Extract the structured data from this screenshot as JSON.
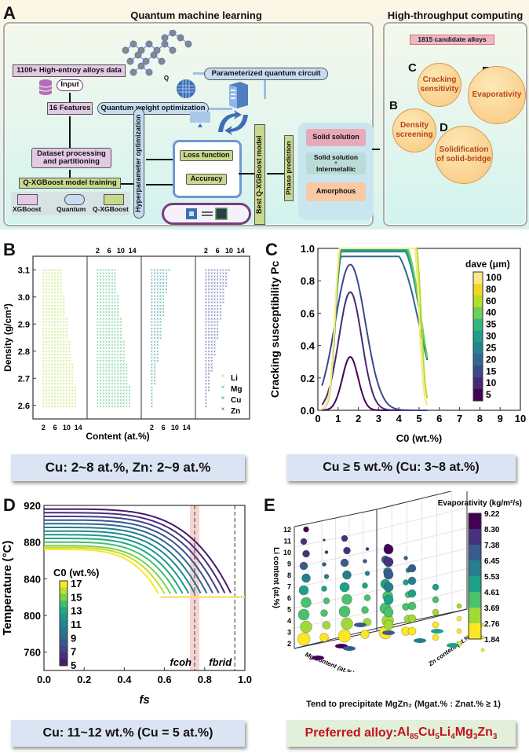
{
  "panelA": {
    "letter": "A",
    "qml_title": "Quantum machine learning",
    "htc_title": "High-throughput computing",
    "nodes": {
      "data": "1100+ High-entroy alloys data",
      "input": "Input",
      "features": "16 Features",
      "qwo": "Quantum weight optimization",
      "pqc": "Parameterized quantum circuit",
      "qubit": "Q",
      "dataset": "Dataset processing and partitioning",
      "training": "Q-XGBoost model training",
      "hyper": "Hyperparameter optimization",
      "loss": "Loss function",
      "accuracy": "Accuracy",
      "best": "Best Q-XGBoost model",
      "phase": "Phase prediction",
      "solid": "Solid solution",
      "solid_inter_1": "Solid solution",
      "solid_inter_plus": "+",
      "solid_inter_2": "Intermetallic",
      "amorphous": "Amorphous"
    },
    "legend": [
      "XGBoost",
      "Quantum",
      "Q-XGBoost"
    ],
    "htc": {
      "candidates": "1815 candidate alloys",
      "circles": [
        {
          "letter": "C",
          "label": "Cracking sensitivity"
        },
        {
          "letter": "E",
          "label": "Evaporativity"
        },
        {
          "letter": "B",
          "label": "Density screening"
        },
        {
          "letter": "D",
          "label": "Solidification of solid-bridge"
        }
      ]
    }
  },
  "summaries": {
    "B": "Cu: 2~8 at.%, Zn: 2~9 at.%",
    "C": "Cu ≥ 5 wt.% (Cu: 3~8 at.%)",
    "D": "Cu: 11~12 wt.% (Cu = 5 at.%)",
    "E_note": "Tend to precipitate MgZn₂ (Mgat.% : Znat.% ≥ 1)",
    "E_pref_prefix": "Preferred alloy: ",
    "E_pref_alloy": "Al85Cu5Li4Mg3Zn3"
  },
  "chart_data": [
    {
      "panel": "B",
      "type": "scatter",
      "ylabel": "Density (g/cm³)",
      "xlabel": "Content (at.%)",
      "ylim": [
        2.55,
        3.15
      ],
      "yticks": [
        2.6,
        2.7,
        2.8,
        2.9,
        3.0,
        3.1
      ],
      "xticks": [
        2,
        6,
        10,
        14
      ],
      "xlim": [
        0,
        16
      ],
      "series": [
        {
          "name": "Li",
          "color": "#b8e04a",
          "xmax_at_top": 8,
          "xmax_at_bottom": 14,
          "ymin": 2.59
        },
        {
          "name": "Mg",
          "color": "#3dbb74",
          "xmax_at_top": 8,
          "xmax_at_bottom": 14,
          "ymin": 2.59
        },
        {
          "name": "Cu",
          "color": "#1f8a8a",
          "xmax_at_top": 8,
          "xmax_at_bottom": 2,
          "ymin": 2.59
        },
        {
          "name": "Zn",
          "color": "#3b4a9a",
          "xmax_at_top": 10,
          "xmax_at_bottom": 2,
          "ymin": 2.59
        }
      ]
    },
    {
      "panel": "C",
      "type": "line",
      "ylabel": "Cracking susceptibility Pc",
      "xlabel": "C0 (wt.%)",
      "xlim": [
        0,
        10
      ],
      "ylim": [
        0,
        1.0
      ],
      "xticks": [
        0,
        1,
        2,
        3,
        4,
        5,
        6,
        7,
        8,
        9,
        10
      ],
      "yticks": [
        0.0,
        0.2,
        0.4,
        0.6,
        0.8,
        1.0
      ],
      "colorbar_title": "dave (μm)",
      "colorbar_ticks": [
        100,
        80,
        60,
        40,
        35,
        30,
        25,
        20,
        15,
        10,
        5
      ],
      "series": [
        {
          "name": "5",
          "peak": 0.33,
          "peak_x": 1.6,
          "end_x": 3.3
        },
        {
          "name": "10",
          "peak": 0.73,
          "peak_x": 1.6,
          "end_x": 4.0
        },
        {
          "name": "15",
          "peak": 0.9,
          "peak_x": 1.6,
          "end_x": 4.6
        },
        {
          "name": "20",
          "peak": 0.95,
          "peak_x": 1.6,
          "end_x": 5.0
        },
        {
          "name": "25",
          "peak": 0.98,
          "peak_x": 1.6,
          "end_x": 5.1
        },
        {
          "name": "30",
          "peak": 0.99,
          "peak_x": 1.6,
          "end_x": 5.1
        },
        {
          "name": "35",
          "peak": 1.0,
          "peak_x": 1.6,
          "end_x": 5.1
        },
        {
          "name": "40",
          "peak": 1.0,
          "peak_x": 1.6,
          "end_x": 5.1
        },
        {
          "name": "60",
          "peak": 1.0,
          "peak_x": 1.8,
          "end_x": 5.1
        },
        {
          "name": "80",
          "peak": 1.0,
          "peak_x": 2.0,
          "end_x": 5.0
        },
        {
          "name": "100",
          "peak": 1.0,
          "peak_x": 2.2,
          "end_x": 5.0
        }
      ]
    },
    {
      "panel": "D",
      "type": "line",
      "ylabel": "Temperature (°C)",
      "xlabel": "fs",
      "xlim": [
        0,
        1.0
      ],
      "ylim": [
        740,
        920
      ],
      "xticks": [
        0.0,
        0.2,
        0.4,
        0.6,
        0.8,
        1.0
      ],
      "yticks": [
        760,
        800,
        840,
        880,
        920
      ],
      "colorbar_title": "C0 (wt.%)",
      "colorbar_ticks": [
        17,
        15,
        13,
        11,
        9,
        7,
        5
      ],
      "eutectic_T": 820,
      "annotations": [
        {
          "label": "fcoh",
          "x": 0.75
        },
        {
          "label": "fbrid",
          "x": 0.95
        }
      ],
      "series": [
        {
          "c0": 5,
          "T0": 916,
          "f_end": 0.94
        },
        {
          "c0": 6,
          "T0": 912,
          "f_end": 0.91
        },
        {
          "c0": 7,
          "T0": 908,
          "f_end": 0.88
        },
        {
          "c0": 8,
          "T0": 904,
          "f_end": 0.85
        },
        {
          "c0": 9,
          "T0": 900,
          "f_end": 0.82
        },
        {
          "c0": 10,
          "T0": 896,
          "f_end": 0.79
        },
        {
          "c0": 11,
          "T0": 892,
          "f_end": 0.76
        },
        {
          "c0": 12,
          "T0": 888,
          "f_end": 0.73
        },
        {
          "c0": 13,
          "T0": 884,
          "f_end": 0.7
        },
        {
          "c0": 14,
          "T0": 880,
          "f_end": 0.67
        },
        {
          "c0": 15,
          "T0": 876,
          "f_end": 0.64
        },
        {
          "c0": 16,
          "T0": 874,
          "f_end": 0.61
        },
        {
          "c0": 17,
          "T0": 872,
          "f_end": 0.58
        }
      ]
    },
    {
      "panel": "E",
      "type": "scatter",
      "title": "Evaporativity (kg/m²/s)",
      "zlabel": "Li content (at.%)",
      "xlabel": "Mg content (at.%)",
      "ylabel": "Zn content (at.%)",
      "zticks": [
        2,
        3,
        4,
        5,
        6,
        7,
        8,
        9,
        10,
        11,
        12
      ],
      "colorbar_ticks": [
        9.22,
        8.3,
        7.38,
        6.45,
        5.53,
        4.61,
        3.69,
        2.76,
        1.84
      ]
    }
  ]
}
